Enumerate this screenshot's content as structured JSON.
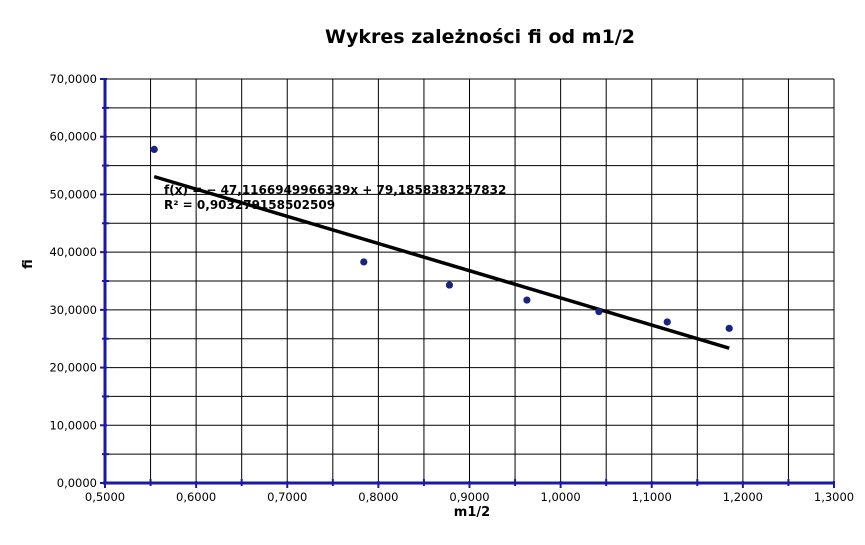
{
  "chart_data": {
    "type": "scatter",
    "title": "Wykres zależności fi od m1/2",
    "xlabel": "m1/2",
    "ylabel": "fi",
    "xlim": [
      0.5,
      1.3
    ],
    "ylim": [
      0,
      70
    ],
    "x_ticks": [
      "0,5000",
      "0,6000",
      "0,7000",
      "0,8000",
      "0,9000",
      "1,0000",
      "1,1000",
      "1,2000",
      "1,3000"
    ],
    "y_ticks": [
      "0,0000",
      "10,0000",
      "20,0000",
      "30,0000",
      "40,0000",
      "50,0000",
      "60,0000",
      "70,0000"
    ],
    "grid": true,
    "legend": "none",
    "series": [
      {
        "points": [
          {
            "x": 0.554,
            "y": 57.8
          },
          {
            "x": 0.784,
            "y": 38.3
          },
          {
            "x": 0.878,
            "y": 34.3
          },
          {
            "x": 0.963,
            "y": 31.7
          },
          {
            "x": 1.042,
            "y": 29.7
          },
          {
            "x": 1.117,
            "y": 27.9
          },
          {
            "x": 1.185,
            "y": 26.8
          }
        ],
        "color": "#1a237e"
      }
    ],
    "trendline": {
      "slope": -47.1166949966339,
      "intercept": 79.1858383257832,
      "x_range": [
        0.554,
        1.185
      ],
      "color": "#000000"
    },
    "annotations": {
      "equation": "f(x) = − 47,1166949966339x + 79,1858383257832",
      "r_squared": "R² = 0,903279158502509"
    },
    "colors": {
      "axis": "#1a1aa6",
      "grid": "#000000",
      "marker": "#1a237e"
    }
  }
}
